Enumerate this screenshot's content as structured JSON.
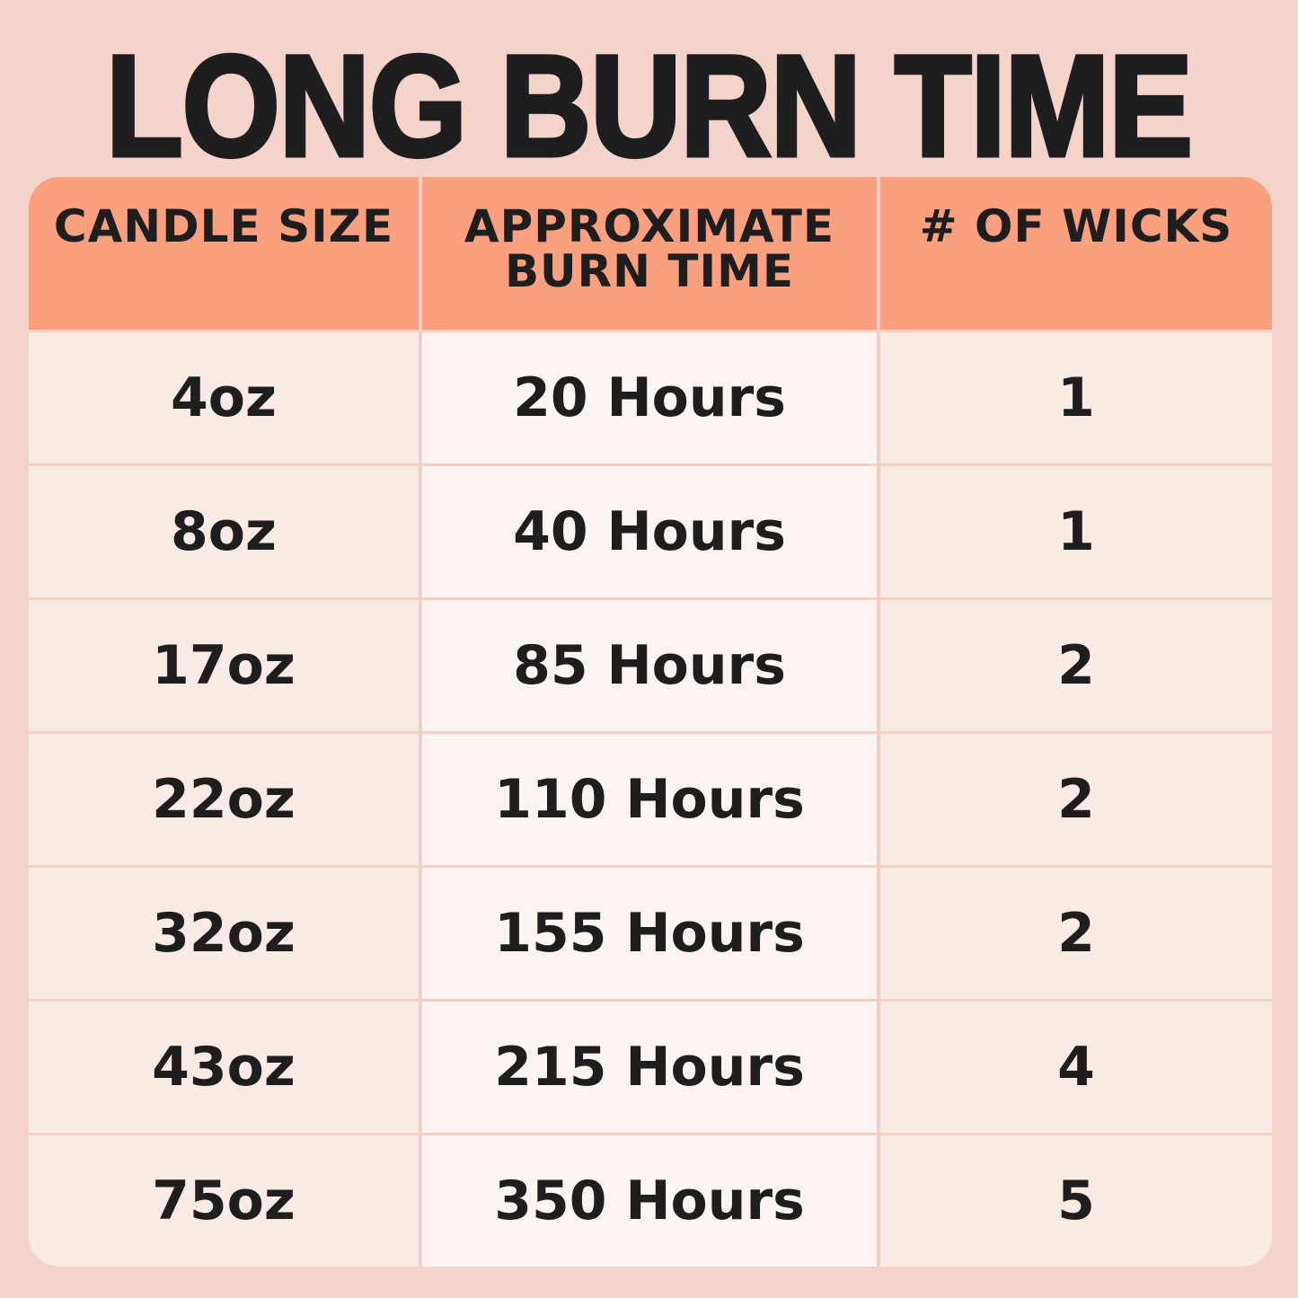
{
  "title": "LONG BURN TIME",
  "colors": {
    "background": "#f4d4ca",
    "header": "#fba07f",
    "text": "#1e1e1e"
  },
  "table": {
    "headers": [
      "CANDLE SIZE",
      "APPROXIMATE\nBURN TIME",
      "# OF WICKS"
    ],
    "rows": [
      [
        "4oz",
        "20 Hours",
        "1"
      ],
      [
        "8oz",
        "40 Hours",
        "1"
      ],
      [
        "17oz",
        "85 Hours",
        "2"
      ],
      [
        "22oz",
        "110 Hours",
        "2"
      ],
      [
        "32oz",
        "155 Hours",
        "2"
      ],
      [
        "43oz",
        "215 Hours",
        "4"
      ],
      [
        "75oz",
        "350 Hours",
        "5"
      ]
    ]
  }
}
